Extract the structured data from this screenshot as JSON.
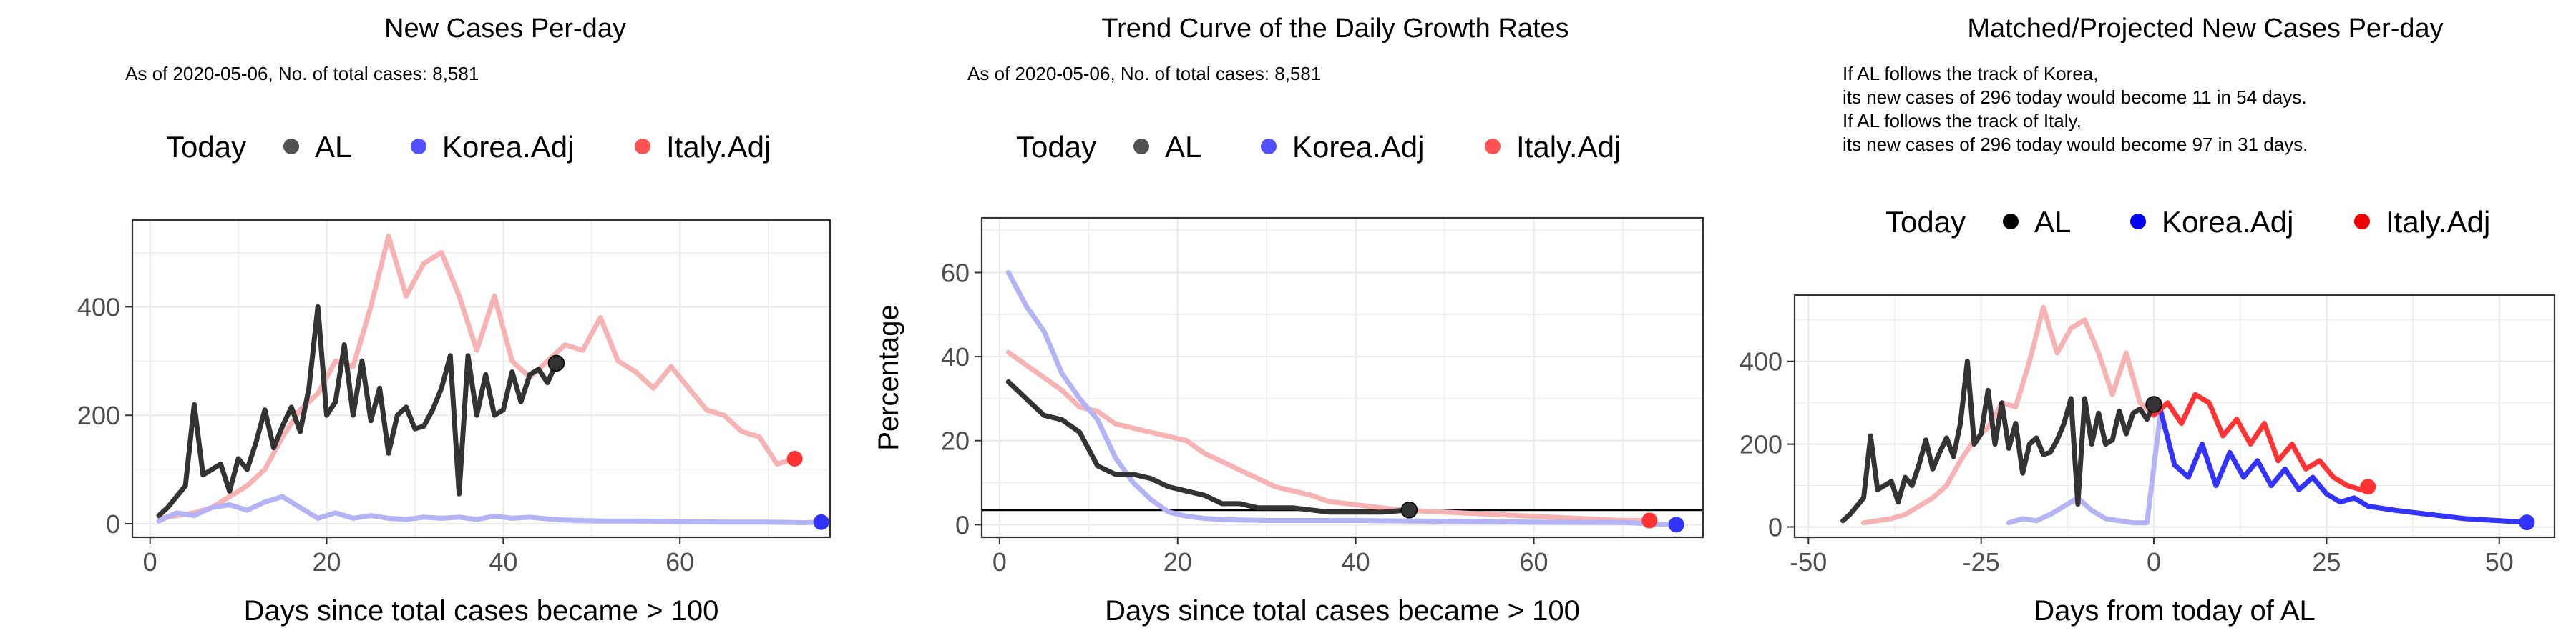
{
  "colors": {
    "al": "#333333",
    "korea": "#3333ff",
    "italy": "#ff3333",
    "korea_faint": "#b3b3f5",
    "italy_faint": "#f7b3b3"
  },
  "legend": {
    "title": "Today",
    "items": [
      "AL",
      "Korea.Adj",
      "Italy.Adj"
    ]
  },
  "chart_data": [
    {
      "type": "line",
      "title": "New Cases Per-day",
      "subtitle": [
        "As of 2020-05-06, No. of total cases: 8,581"
      ],
      "xlabel": "Days since total cases became > 100",
      "ylabel": "",
      "xlim": [
        -2,
        77
      ],
      "ylim": [
        -25,
        560
      ],
      "xticks": [
        0,
        20,
        40,
        60
      ],
      "yticks": [
        0,
        200,
        400
      ],
      "series": [
        {
          "name": "AL",
          "x": [
            1,
            2,
            3,
            4,
            5,
            6,
            7,
            8,
            9,
            10,
            11,
            12,
            13,
            14,
            15,
            16,
            17,
            18,
            19,
            20,
            21,
            22,
            23,
            24,
            25,
            26,
            27,
            28,
            29,
            30,
            31,
            32,
            33,
            34,
            35,
            36,
            37,
            38,
            39,
            40,
            41,
            42,
            43,
            44,
            45,
            46
          ],
          "values": [
            15,
            30,
            50,
            70,
            220,
            90,
            100,
            110,
            60,
            120,
            100,
            150,
            210,
            140,
            180,
            215,
            170,
            250,
            400,
            200,
            225,
            330,
            200,
            300,
            190,
            250,
            130,
            200,
            215,
            175,
            180,
            210,
            250,
            310,
            55,
            310,
            200,
            275,
            200,
            210,
            280,
            225,
            275,
            285,
            260,
            296
          ]
        },
        {
          "name": "Korea.Adj",
          "x": [
            1,
            3,
            5,
            7,
            9,
            11,
            13,
            15,
            17,
            19,
            21,
            23,
            25,
            27,
            29,
            31,
            33,
            35,
            37,
            39,
            41,
            43,
            45,
            47,
            49,
            51,
            55,
            60,
            65,
            70,
            74,
            76
          ],
          "values": [
            5,
            20,
            15,
            30,
            35,
            25,
            40,
            50,
            30,
            10,
            20,
            10,
            15,
            10,
            8,
            12,
            10,
            12,
            8,
            14,
            10,
            12,
            9,
            7,
            6,
            5,
            5,
            4,
            3,
            3,
            2,
            3
          ]
        },
        {
          "name": "Italy.Adj",
          "x": [
            1,
            3,
            5,
            7,
            9,
            11,
            13,
            15,
            17,
            19,
            21,
            23,
            25,
            27,
            29,
            31,
            33,
            35,
            37,
            39,
            41,
            43,
            45,
            47,
            49,
            51,
            53,
            55,
            57,
            59,
            61,
            63,
            65,
            67,
            69,
            71,
            73
          ],
          "values": [
            10,
            15,
            20,
            30,
            50,
            70,
            100,
            160,
            210,
            240,
            300,
            290,
            400,
            530,
            420,
            480,
            500,
            420,
            320,
            420,
            300,
            270,
            300,
            330,
            320,
            380,
            300,
            280,
            250,
            290,
            250,
            210,
            200,
            170,
            160,
            110,
            120
          ]
        }
      ],
      "today_points": [
        {
          "series": "AL",
          "x": 46,
          "y": 296
        },
        {
          "series": "Korea.Adj",
          "x": 76,
          "y": 3
        },
        {
          "series": "Italy.Adj",
          "x": 73,
          "y": 120
        }
      ]
    },
    {
      "type": "line",
      "title": "Trend Curve of the Daily Growth Rates",
      "subtitle": [
        "As of 2020-05-06, No. of total cases: 8,581"
      ],
      "xlabel": "Days since total cases became > 100",
      "ylabel": "Percentage",
      "xlim": [
        -2,
        79
      ],
      "ylim": [
        -3,
        73
      ],
      "xticks": [
        0,
        20,
        40,
        60
      ],
      "yticks": [
        0,
        20,
        40,
        60
      ],
      "hline": 3.5,
      "series": [
        {
          "name": "AL",
          "x": [
            1,
            3,
            5,
            7,
            9,
            11,
            13,
            15,
            17,
            19,
            21,
            23,
            25,
            27,
            29,
            31,
            33,
            35,
            37,
            39,
            41,
            43,
            46
          ],
          "values": [
            34,
            30,
            26,
            25,
            22,
            14,
            12,
            12,
            11,
            9,
            8,
            7,
            5,
            5,
            4,
            4,
            4,
            3.5,
            3,
            3,
            3,
            3,
            3.5
          ]
        },
        {
          "name": "Korea.Adj",
          "x": [
            1,
            3,
            5,
            7,
            9,
            11,
            13,
            15,
            17,
            19,
            21,
            23,
            25,
            30,
            35,
            40,
            50,
            60,
            70,
            76
          ],
          "values": [
            60,
            52,
            46,
            36,
            30,
            25,
            16,
            10,
            6,
            3,
            2,
            1.5,
            1.2,
            1,
            1,
            1,
            0.8,
            0.6,
            0.5,
            0
          ]
        },
        {
          "name": "Italy.Adj",
          "x": [
            1,
            3,
            5,
            7,
            9,
            11,
            13,
            15,
            17,
            19,
            21,
            23,
            25,
            27,
            29,
            31,
            33,
            35,
            37,
            39,
            41,
            43,
            45,
            50,
            55,
            60,
            65,
            70,
            73
          ],
          "values": [
            41,
            38,
            35,
            32,
            28,
            27,
            24,
            23,
            22,
            21,
            20,
            17,
            15,
            13,
            11,
            9,
            8,
            7,
            5.5,
            5,
            4.5,
            4,
            3.5,
            3,
            2.5,
            2,
            1.5,
            1,
            1
          ]
        }
      ],
      "today_points": [
        {
          "series": "AL",
          "x": 46,
          "y": 3.5
        },
        {
          "series": "Korea.Adj",
          "x": 76,
          "y": 0
        },
        {
          "series": "Italy.Adj",
          "x": 73,
          "y": 1
        }
      ]
    },
    {
      "type": "line",
      "title": "Matched/Projected New Cases Per-day",
      "subtitle": [
        "If AL follows the track of Korea,",
        "its new cases of 296 today would become 11 in 54 days.",
        "If AL follows the track of Italy,",
        "its new cases of 296 today would become 97 in 31 days."
      ],
      "xlabel": "Days from today of AL",
      "ylabel": "",
      "xlim": [
        -52,
        58
      ],
      "ylim": [
        -25,
        560
      ],
      "xticks": [
        -50,
        -25,
        0,
        25,
        50
      ],
      "yticks": [
        0,
        200,
        400
      ],
      "series": [
        {
          "name": "AL",
          "x": [
            -45,
            -44,
            -43,
            -42,
            -41,
            -40,
            -39,
            -38,
            -37,
            -36,
            -35,
            -34,
            -33,
            -32,
            -31,
            -30,
            -29,
            -28,
            -27,
            -26,
            -25,
            -24,
            -23,
            -22,
            -21,
            -20,
            -19,
            -18,
            -17,
            -16,
            -15,
            -14,
            -13,
            -12,
            -11,
            -10,
            -9,
            -8,
            -7,
            -6,
            -5,
            -4,
            -3,
            -2,
            -1,
            0
          ],
          "values": [
            15,
            30,
            50,
            70,
            220,
            90,
            100,
            110,
            60,
            120,
            100,
            150,
            210,
            140,
            180,
            215,
            170,
            250,
            400,
            200,
            225,
            330,
            200,
            300,
            190,
            250,
            130,
            200,
            215,
            175,
            180,
            210,
            250,
            310,
            55,
            310,
            200,
            275,
            200,
            210,
            280,
            225,
            275,
            285,
            260,
            296
          ]
        },
        {
          "name": "Korea.Adj",
          "x": [
            -21,
            -19,
            -17,
            -15,
            -13,
            -11,
            -9,
            -7,
            -5,
            -3,
            -1,
            1,
            3,
            5,
            7,
            9,
            11,
            13,
            15,
            17,
            19,
            21,
            23,
            25,
            27,
            29,
            31,
            35,
            40,
            45,
            50,
            54
          ],
          "values": [
            10,
            20,
            15,
            30,
            50,
            70,
            40,
            20,
            15,
            10,
            10,
            280,
            150,
            120,
            200,
            100,
            180,
            120,
            160,
            100,
            140,
            90,
            120,
            80,
            60,
            70,
            50,
            40,
            30,
            20,
            15,
            11
          ]
        },
        {
          "name": "Italy.Adj",
          "x": [
            -42,
            -40,
            -38,
            -36,
            -34,
            -32,
            -30,
            -28,
            -26,
            -24,
            -22,
            -20,
            -18,
            -16,
            -14,
            -12,
            -10,
            -8,
            -6,
            -4,
            -2,
            0,
            2,
            4,
            6,
            8,
            10,
            12,
            14,
            16,
            18,
            20,
            22,
            24,
            26,
            28,
            30,
            31
          ],
          "values": [
            10,
            15,
            20,
            30,
            50,
            70,
            100,
            160,
            210,
            240,
            300,
            290,
            400,
            530,
            420,
            480,
            500,
            420,
            320,
            420,
            300,
            270,
            300,
            250,
            320,
            300,
            220,
            260,
            200,
            250,
            160,
            200,
            140,
            160,
            120,
            100,
            90,
            97
          ]
        }
      ],
      "today_points": [
        {
          "series": "AL",
          "x": 0,
          "y": 296
        },
        {
          "series": "Korea.Adj",
          "x": 54,
          "y": 11
        },
        {
          "series": "Italy.Adj",
          "x": 31,
          "y": 97
        }
      ]
    }
  ]
}
